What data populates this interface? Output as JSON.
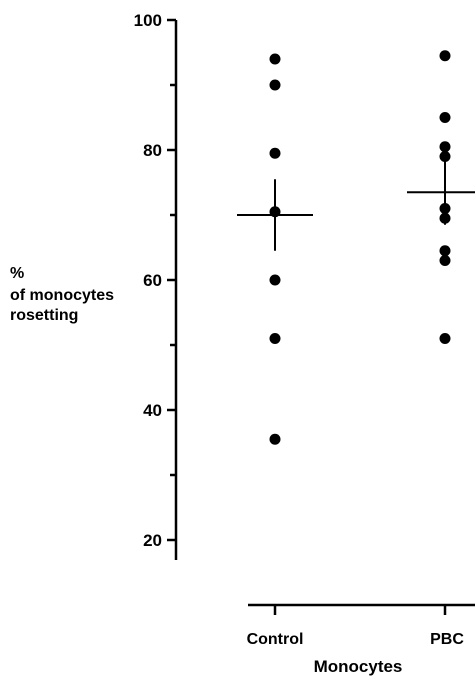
{
  "chart_data": {
    "type": "scatter",
    "title": "",
    "ylabel_lines": [
      "%",
      "of monocytes",
      "rosetting"
    ],
    "xlabel": "Monocytes",
    "categories": [
      "Control",
      "PBC"
    ],
    "yticks": [
      20,
      40,
      60,
      80,
      100
    ],
    "ylim": [
      20,
      100
    ],
    "series": [
      {
        "values": [
          94,
          90,
          79.5,
          70.5,
          60,
          51,
          35.5
        ]
      },
      {
        "values": [
          94.5,
          85,
          80.5,
          79,
          71,
          69.5,
          64.5,
          63,
          51
        ]
      }
    ],
    "means": [
      70,
      73.5
    ],
    "error_half_width": [
      5.5,
      5
    ],
    "grid": false,
    "legend": "none"
  }
}
